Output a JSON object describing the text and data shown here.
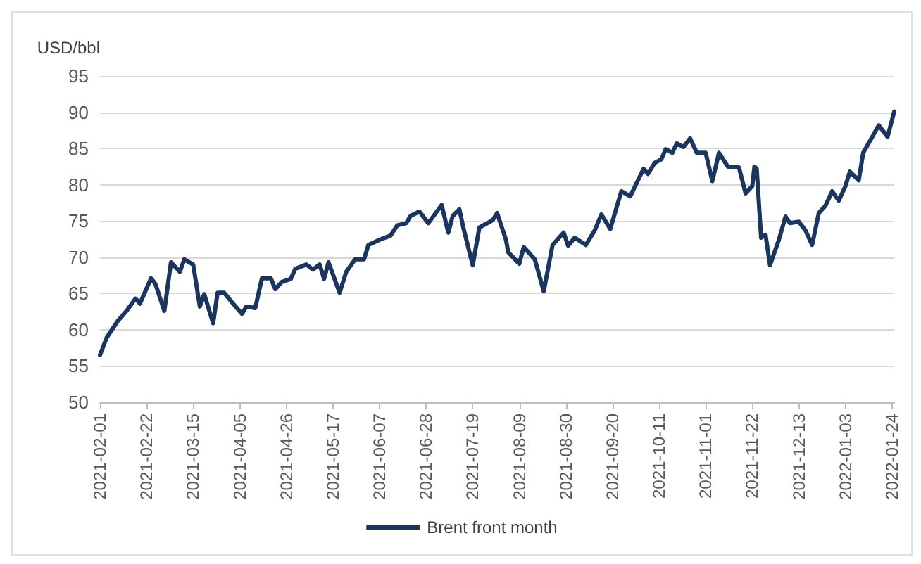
{
  "chart_data": {
    "type": "line",
    "ylabel": "USD/bbl",
    "x": [
      "2021-02-01",
      "2021-02-04",
      "2021-02-09",
      "2021-02-13",
      "2021-02-17",
      "2021-02-19",
      "2021-02-24",
      "2021-02-26",
      "2021-03-02",
      "2021-03-05",
      "2021-03-09",
      "2021-03-11",
      "2021-03-15",
      "2021-03-18",
      "2021-03-20",
      "2021-03-24",
      "2021-03-26",
      "2021-03-29",
      "2021-04-02",
      "2021-04-06",
      "2021-04-08",
      "2021-04-12",
      "2021-04-15",
      "2021-04-19",
      "2021-04-21",
      "2021-04-24",
      "2021-04-28",
      "2021-04-30",
      "2021-05-05",
      "2021-05-08",
      "2021-05-11",
      "2021-05-13",
      "2021-05-15",
      "2021-05-20",
      "2021-05-23",
      "2021-05-27",
      "2021-05-31",
      "2021-06-02",
      "2021-06-07",
      "2021-06-12",
      "2021-06-15",
      "2021-06-19",
      "2021-06-21",
      "2021-06-25",
      "2021-06-29",
      "2021-07-05",
      "2021-07-08",
      "2021-07-10",
      "2021-07-13",
      "2021-07-15",
      "2021-07-19",
      "2021-07-22",
      "2021-07-28",
      "2021-07-30",
      "2021-08-03",
      "2021-08-04",
      "2021-08-09",
      "2021-08-11",
      "2021-08-16",
      "2021-08-20",
      "2021-08-24",
      "2021-08-29",
      "2021-08-31",
      "2021-09-03",
      "2021-09-08",
      "2021-09-12",
      "2021-09-15",
      "2021-09-19",
      "2021-09-24",
      "2021-09-28",
      "2021-10-04",
      "2021-10-06",
      "2021-10-09",
      "2021-10-12",
      "2021-10-14",
      "2021-10-17",
      "2021-10-19",
      "2021-10-22",
      "2021-10-25",
      "2021-10-28",
      "2021-11-01",
      "2021-11-04",
      "2021-11-07",
      "2021-11-11",
      "2021-11-16",
      "2021-11-19",
      "2021-11-22",
      "2021-11-23",
      "2021-11-24",
      "2021-11-26",
      "2021-11-28",
      "2021-11-30",
      "2021-12-04",
      "2021-12-07",
      "2021-12-09",
      "2021-12-13",
      "2021-12-16",
      "2021-12-19",
      "2021-12-22",
      "2021-12-25",
      "2021-12-28",
      "2021-12-31",
      "2022-01-03",
      "2022-01-05",
      "2022-01-09",
      "2022-01-11",
      "2022-01-14",
      "2022-01-18",
      "2022-01-22",
      "2022-01-25"
    ],
    "series": [
      {
        "name": "Brent front month",
        "color": "#1c355e",
        "values": [
          56.5,
          58.9,
          61.2,
          62.6,
          64.3,
          63.6,
          67.1,
          66.3,
          62.6,
          69.3,
          68,
          69.7,
          69,
          63.2,
          64.9,
          60.9,
          65.1,
          65.1,
          63.6,
          62.2,
          63.2,
          63,
          67.1,
          67.1,
          65.6,
          66.6,
          67,
          68.4,
          69,
          68.3,
          69,
          67,
          69.3,
          65.1,
          68,
          69.7,
          69.7,
          71.7,
          72.4,
          73,
          74.4,
          74.7,
          75.7,
          76.3,
          74.7,
          77.2,
          73.4,
          75.7,
          76.6,
          73.8,
          68.9,
          74.1,
          75.1,
          76.1,
          72.4,
          70.7,
          69.1,
          71.4,
          69.7,
          65.3,
          71.7,
          73.4,
          71.6,
          72.7,
          71.7,
          73.7,
          75.9,
          73.9,
          79.1,
          78.4,
          82.2,
          81.5,
          83,
          83.5,
          84.9,
          84.4,
          85.7,
          85.2,
          86.4,
          84.4,
          84.4,
          80.5,
          84.4,
          82.5,
          82.4,
          78.8,
          79.8,
          82.5,
          82.2,
          72.7,
          73.1,
          68.9,
          72.4,
          75.6,
          74.7,
          74.9,
          73.7,
          71.7,
          76.1,
          77.1,
          79.1,
          77.8,
          79.8,
          81.8,
          80.6,
          84.4,
          86,
          88.2,
          86.6,
          90.1
        ]
      }
    ],
    "xlim": [
      "2021-02-01",
      "2022-01-25"
    ],
    "xticks": [
      "2021-02-01",
      "2021-02-22",
      "2021-03-15",
      "2021-04-05",
      "2021-04-26",
      "2021-05-17",
      "2021-06-07",
      "2021-06-28",
      "2021-07-19",
      "2021-08-09",
      "2021-08-30",
      "2021-09-20",
      "2021-10-11",
      "2021-11-01",
      "2021-11-22",
      "2021-12-13",
      "2022-01-03",
      "2022-01-24"
    ],
    "ylim": [
      50,
      95
    ],
    "yticks": [
      50,
      55,
      60,
      65,
      70,
      75,
      80,
      85,
      90,
      95
    ],
    "grid": "y",
    "legend": "bottom",
    "marker": "none",
    "line_style": "solid"
  }
}
